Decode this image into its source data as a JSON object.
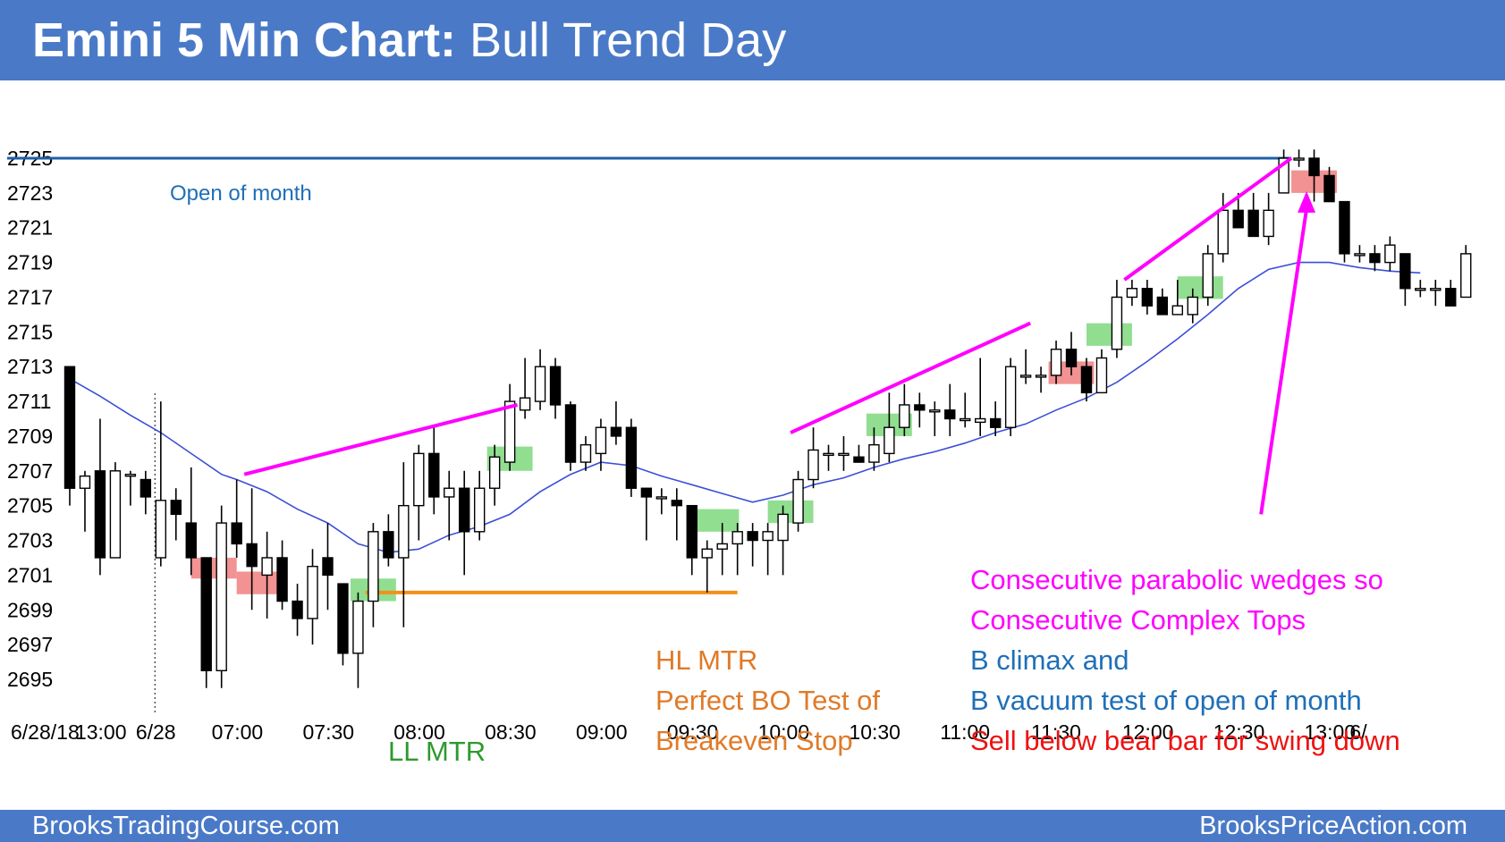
{
  "header": {
    "title_bold": "Emini 5 Min Chart:",
    "title_rest": "Bull Trend Day"
  },
  "footer": {
    "left": "BrooksTradingCourse.com",
    "right": "BrooksPriceAction.com"
  },
  "colors": {
    "header_bg": "#4a7ac7",
    "bull_body": "#ffffff",
    "bear_body": "#000000",
    "ema": "#3b4fd6",
    "wedge": "#ff00ff",
    "open_line": "#1f5fa8",
    "hl_line": "#f39019",
    "green_box": "#7ed87e",
    "red_box": "#f07f7f"
  },
  "chart_data": {
    "type": "candlestick",
    "title": "Emini 5 Min Chart: Bull Trend Day",
    "ylim": [
      2694,
      2728
    ],
    "yticks": [
      2695,
      2697,
      2699,
      2701,
      2703,
      2705,
      2707,
      2709,
      2711,
      2713,
      2715,
      2717,
      2719,
      2721,
      2723,
      2725
    ],
    "xticks": [
      {
        "label": "6/28/18",
        "bar": -0.3
      },
      {
        "label": "13:00",
        "bar": 2
      },
      {
        "label": "6/28",
        "bar": 6
      },
      {
        "label": "07:00",
        "bar": 11
      },
      {
        "label": "07:30",
        "bar": 17
      },
      {
        "label": "08:00",
        "bar": 23
      },
      {
        "label": "08:30",
        "bar": 29
      },
      {
        "label": "09:00",
        "bar": 35
      },
      {
        "label": "09:30",
        "bar": 41
      },
      {
        "label": "10:00",
        "bar": 47
      },
      {
        "label": "10:30",
        "bar": 53
      },
      {
        "label": "11:00",
        "bar": 59
      },
      {
        "label": "11:30",
        "bar": 65
      },
      {
        "label": "12:00",
        "bar": 71
      },
      {
        "label": "12:30",
        "bar": 77
      },
      {
        "label": "13:00",
        "bar": 83
      },
      {
        "label": "6/",
        "bar": 86
      }
    ],
    "session_break_bar": 5.5,
    "bars": [
      {
        "o": 2713.0,
        "h": 2713.0,
        "l": 2705.0,
        "c": 2706.0
      },
      {
        "o": 2706.0,
        "h": 2707.0,
        "l": 2703.5,
        "c": 2706.7
      },
      {
        "o": 2707.0,
        "h": 2710.0,
        "l": 2701.0,
        "c": 2702.0
      },
      {
        "o": 2702.0,
        "h": 2707.5,
        "l": 2702.0,
        "c": 2707.0
      },
      {
        "o": 2706.8,
        "h": 2707.0,
        "l": 2705.0,
        "c": 2706.8
      },
      {
        "o": 2706.5,
        "h": 2707.0,
        "l": 2704.5,
        "c": 2705.5
      },
      {
        "o": 2702.0,
        "h": 2711.0,
        "l": 2701.5,
        "c": 2705.3
      },
      {
        "o": 2705.3,
        "h": 2706.0,
        "l": 2703.0,
        "c": 2704.5
      },
      {
        "o": 2704.0,
        "h": 2707.2,
        "l": 2701.0,
        "c": 2702.0
      },
      {
        "o": 2702.0,
        "h": 2702.0,
        "l": 2694.5,
        "c": 2695.5
      },
      {
        "o": 2695.5,
        "h": 2705.0,
        "l": 2694.5,
        "c": 2704.0
      },
      {
        "o": 2704.0,
        "h": 2706.5,
        "l": 2702.0,
        "c": 2702.8
      },
      {
        "o": 2702.8,
        "h": 2706.0,
        "l": 2699.0,
        "c": 2701.5
      },
      {
        "o": 2701.0,
        "h": 2703.5,
        "l": 2698.5,
        "c": 2702.0
      },
      {
        "o": 2702.0,
        "h": 2703.0,
        "l": 2699.0,
        "c": 2699.5
      },
      {
        "o": 2699.5,
        "h": 2700.5,
        "l": 2697.5,
        "c": 2698.5
      },
      {
        "o": 2698.5,
        "h": 2702.5,
        "l": 2697.0,
        "c": 2701.5
      },
      {
        "o": 2702.0,
        "h": 2704.0,
        "l": 2699.0,
        "c": 2701.0
      },
      {
        "o": 2700.5,
        "h": 2700.5,
        "l": 2695.8,
        "c": 2696.5
      },
      {
        "o": 2696.5,
        "h": 2700.0,
        "l": 2694.5,
        "c": 2699.5
      },
      {
        "o": 2699.5,
        "h": 2704.0,
        "l": 2698.0,
        "c": 2703.5
      },
      {
        "o": 2703.5,
        "h": 2704.5,
        "l": 2701.5,
        "c": 2702.0
      },
      {
        "o": 2702.0,
        "h": 2707.5,
        "l": 2698.0,
        "c": 2705.0
      },
      {
        "o": 2705.0,
        "h": 2708.5,
        "l": 2703.0,
        "c": 2708.0
      },
      {
        "o": 2708.0,
        "h": 2709.5,
        "l": 2704.5,
        "c": 2705.5
      },
      {
        "o": 2705.5,
        "h": 2707.0,
        "l": 2703.0,
        "c": 2706.0
      },
      {
        "o": 2706.0,
        "h": 2707.0,
        "l": 2701.0,
        "c": 2703.5
      },
      {
        "o": 2703.5,
        "h": 2707.0,
        "l": 2703.0,
        "c": 2706.0
      },
      {
        "o": 2706.0,
        "h": 2708.5,
        "l": 2705.0,
        "c": 2707.8
      },
      {
        "o": 2707.5,
        "h": 2712.0,
        "l": 2707.0,
        "c": 2711.0
      },
      {
        "o": 2710.5,
        "h": 2713.5,
        "l": 2710.0,
        "c": 2711.2
      },
      {
        "o": 2711.0,
        "h": 2714.0,
        "l": 2710.5,
        "c": 2713.0
      },
      {
        "o": 2713.0,
        "h": 2713.5,
        "l": 2710.0,
        "c": 2710.8
      },
      {
        "o": 2710.8,
        "h": 2711.0,
        "l": 2707.0,
        "c": 2707.5
      },
      {
        "o": 2707.5,
        "h": 2709.0,
        "l": 2707.0,
        "c": 2708.5
      },
      {
        "o": 2708.0,
        "h": 2710.0,
        "l": 2707.0,
        "c": 2709.5
      },
      {
        "o": 2709.5,
        "h": 2711.0,
        "l": 2708.5,
        "c": 2709.0
      },
      {
        "o": 2709.5,
        "h": 2710.0,
        "l": 2705.5,
        "c": 2706.0
      },
      {
        "o": 2706.0,
        "h": 2706.0,
        "l": 2703.0,
        "c": 2705.5
      },
      {
        "o": 2705.5,
        "h": 2706.0,
        "l": 2704.5,
        "c": 2705.5
      },
      {
        "o": 2705.3,
        "h": 2706.0,
        "l": 2703.0,
        "c": 2705.0
      },
      {
        "o": 2705.0,
        "h": 2705.0,
        "l": 2701.0,
        "c": 2702.0
      },
      {
        "o": 2702.0,
        "h": 2703.0,
        "l": 2700.0,
        "c": 2702.5
      },
      {
        "o": 2702.5,
        "h": 2704.0,
        "l": 2701.0,
        "c": 2702.8
      },
      {
        "o": 2702.8,
        "h": 2704.0,
        "l": 2701.0,
        "c": 2703.5
      },
      {
        "o": 2703.5,
        "h": 2704.0,
        "l": 2701.5,
        "c": 2703.0
      },
      {
        "o": 2703.0,
        "h": 2704.0,
        "l": 2701.0,
        "c": 2703.5
      },
      {
        "o": 2703.0,
        "h": 2705.0,
        "l": 2701.0,
        "c": 2704.5
      },
      {
        "o": 2704.0,
        "h": 2707.0,
        "l": 2703.5,
        "c": 2706.5
      },
      {
        "o": 2706.5,
        "h": 2709.5,
        "l": 2706.0,
        "c": 2708.2
      },
      {
        "o": 2708.0,
        "h": 2708.5,
        "l": 2707.0,
        "c": 2708.0
      },
      {
        "o": 2708.0,
        "h": 2709.0,
        "l": 2707.0,
        "c": 2708.0
      },
      {
        "o": 2707.8,
        "h": 2708.5,
        "l": 2707.5,
        "c": 2707.5
      },
      {
        "o": 2707.5,
        "h": 2709.5,
        "l": 2707.0,
        "c": 2708.5
      },
      {
        "o": 2708.0,
        "h": 2711.5,
        "l": 2707.5,
        "c": 2709.5
      },
      {
        "o": 2709.5,
        "h": 2712.0,
        "l": 2709.0,
        "c": 2710.8
      },
      {
        "o": 2710.8,
        "h": 2711.5,
        "l": 2709.5,
        "c": 2710.5
      },
      {
        "o": 2710.5,
        "h": 2711.0,
        "l": 2709.0,
        "c": 2710.5
      },
      {
        "o": 2710.5,
        "h": 2712.0,
        "l": 2709.0,
        "c": 2710.0
      },
      {
        "o": 2710.0,
        "h": 2711.5,
        "l": 2709.5,
        "c": 2710.0
      },
      {
        "o": 2709.8,
        "h": 2713.5,
        "l": 2709.0,
        "c": 2710.0
      },
      {
        "o": 2710.0,
        "h": 2711.0,
        "l": 2709.0,
        "c": 2709.5
      },
      {
        "o": 2709.5,
        "h": 2713.5,
        "l": 2709.0,
        "c": 2713.0
      },
      {
        "o": 2712.5,
        "h": 2714.0,
        "l": 2712.0,
        "c": 2712.5
      },
      {
        "o": 2712.5,
        "h": 2713.0,
        "l": 2711.5,
        "c": 2712.5
      },
      {
        "o": 2712.5,
        "h": 2714.5,
        "l": 2712.0,
        "c": 2714.0
      },
      {
        "o": 2714.0,
        "h": 2715.0,
        "l": 2712.5,
        "c": 2713.0
      },
      {
        "o": 2713.0,
        "h": 2713.5,
        "l": 2711.0,
        "c": 2711.5
      },
      {
        "o": 2711.5,
        "h": 2714.0,
        "l": 2711.5,
        "c": 2713.5
      },
      {
        "o": 2714.0,
        "h": 2718.0,
        "l": 2713.5,
        "c": 2717.0
      },
      {
        "o": 2717.0,
        "h": 2718.0,
        "l": 2716.5,
        "c": 2717.5
      },
      {
        "o": 2717.5,
        "h": 2718.0,
        "l": 2716.0,
        "c": 2716.5
      },
      {
        "o": 2717.0,
        "h": 2717.5,
        "l": 2716.0,
        "c": 2716.0
      },
      {
        "o": 2716.0,
        "h": 2718.0,
        "l": 2716.0,
        "c": 2716.5
      },
      {
        "o": 2716.0,
        "h": 2717.5,
        "l": 2715.5,
        "c": 2717.0
      },
      {
        "o": 2717.0,
        "h": 2720.0,
        "l": 2716.5,
        "c": 2719.5
      },
      {
        "o": 2719.5,
        "h": 2723.0,
        "l": 2719.0,
        "c": 2722.0
      },
      {
        "o": 2722.0,
        "h": 2723.0,
        "l": 2721.0,
        "c": 2721.0
      },
      {
        "o": 2722.0,
        "h": 2723.0,
        "l": 2720.5,
        "c": 2720.5
      },
      {
        "o": 2720.5,
        "h": 2723.0,
        "l": 2720.0,
        "c": 2722.0
      },
      {
        "o": 2723.0,
        "h": 2725.5,
        "l": 2723.0,
        "c": 2725.0
      },
      {
        "o": 2725.0,
        "h": 2725.5,
        "l": 2724.5,
        "c": 2725.0
      },
      {
        "o": 2725.0,
        "h": 2725.5,
        "l": 2722.5,
        "c": 2724.0
      },
      {
        "o": 2724.0,
        "h": 2724.5,
        "l": 2722.5,
        "c": 2722.5
      },
      {
        "o": 2722.5,
        "h": 2722.5,
        "l": 2719.0,
        "c": 2719.5
      },
      {
        "o": 2719.5,
        "h": 2720.0,
        "l": 2719.0,
        "c": 2719.5
      },
      {
        "o": 2719.5,
        "h": 2720.0,
        "l": 2718.5,
        "c": 2719.0
      },
      {
        "o": 2719.0,
        "h": 2720.5,
        "l": 2718.5,
        "c": 2720.0
      },
      {
        "o": 2719.5,
        "h": 2719.5,
        "l": 2716.5,
        "c": 2717.5
      },
      {
        "o": 2717.5,
        "h": 2718.0,
        "l": 2717.0,
        "c": 2717.5
      },
      {
        "o": 2717.5,
        "h": 2718.0,
        "l": 2716.5,
        "c": 2717.5
      },
      {
        "o": 2717.5,
        "h": 2718.0,
        "l": 2716.5,
        "c": 2716.5
      },
      {
        "o": 2717.0,
        "h": 2720.0,
        "l": 2717.0,
        "c": 2719.5
      }
    ],
    "ema": [
      [
        0,
        2712.3
      ],
      [
        2,
        2711.3
      ],
      [
        4,
        2710.2
      ],
      [
        6,
        2709.2
      ],
      [
        8,
        2708.0
      ],
      [
        10,
        2706.8
      ],
      [
        11,
        2706.5
      ],
      [
        13,
        2705.8
      ],
      [
        15,
        2704.8
      ],
      [
        17,
        2704.0
      ],
      [
        19,
        2702.8
      ],
      [
        21,
        2702.3
      ],
      [
        23,
        2702.5
      ],
      [
        25,
        2703.3
      ],
      [
        27,
        2703.8
      ],
      [
        29,
        2704.5
      ],
      [
        31,
        2705.8
      ],
      [
        33,
        2706.8
      ],
      [
        35,
        2707.5
      ],
      [
        37,
        2707.3
      ],
      [
        39,
        2706.7
      ],
      [
        41,
        2706.2
      ],
      [
        43,
        2705.7
      ],
      [
        45,
        2705.2
      ],
      [
        47,
        2705.6
      ],
      [
        49,
        2706.2
      ],
      [
        51,
        2706.6
      ],
      [
        53,
        2707.2
      ],
      [
        55,
        2707.7
      ],
      [
        57,
        2708.1
      ],
      [
        59,
        2708.6
      ],
      [
        61,
        2709.2
      ],
      [
        63,
        2709.7
      ],
      [
        65,
        2710.5
      ],
      [
        67,
        2711.2
      ],
      [
        69,
        2712.1
      ],
      [
        71,
        2713.3
      ],
      [
        73,
        2714.6
      ],
      [
        75,
        2716.0
      ],
      [
        77,
        2717.5
      ],
      [
        79,
        2718.6
      ],
      [
        81,
        2719.0
      ],
      [
        83,
        2719.0
      ],
      [
        85,
        2718.7
      ],
      [
        87,
        2718.5
      ],
      [
        89,
        2718.4
      ]
    ],
    "annotations": {
      "open_of_month": {
        "label": "Open of month",
        "price": 2725
      },
      "hl_line": {
        "price": 2700,
        "from_bar": 19.5,
        "to_bar": 44
      },
      "wedges": [
        {
          "from": [
            11.5,
            2706.8
          ],
          "to": [
            29.5,
            2710.8
          ]
        },
        {
          "from": [
            47.5,
            2709.2
          ],
          "to": [
            63.3,
            2715.5
          ]
        },
        {
          "from": [
            69.5,
            2718.0
          ],
          "to": [
            80.5,
            2725.0
          ]
        }
      ],
      "green_boxes": [
        {
          "bar": 20,
          "low": 2699.5,
          "high": 2700.8
        },
        {
          "bar": 29,
          "low": 2707.0,
          "high": 2708.4
        },
        {
          "bar": 42.5,
          "low": 2703.5,
          "high": 2704.8,
          "width_bars": 3.2
        },
        {
          "bar": 47.5,
          "low": 2704.0,
          "high": 2705.3
        },
        {
          "bar": 54,
          "low": 2709.0,
          "high": 2710.3
        },
        {
          "bar": 68.5,
          "low": 2714.2,
          "high": 2715.5
        },
        {
          "bar": 74.5,
          "low": 2716.9,
          "high": 2718.2
        }
      ],
      "red_boxes": [
        {
          "bar": 9.5,
          "low": 2700.8,
          "high": 2702.0
        },
        {
          "bar": 12.5,
          "low": 2699.9,
          "high": 2701.2
        },
        {
          "bar": 66,
          "low": 2712.0,
          "high": 2713.3
        },
        {
          "bar": 82,
          "low": 2723.0,
          "high": 2724.3
        }
      ],
      "arrow": {
        "from": [
          78.5,
          2704.5
        ],
        "to": [
          81.5,
          2723.0
        ]
      },
      "labels": {
        "ll_mtr": "LL MTR",
        "hl_mtr": "HL MTR",
        "bo_test_1": "Perfect BO Test of",
        "bo_test_2": "Breakeven Stop",
        "note_1": "Consecutive parabolic wedges so",
        "note_2": "Consecutive Complex Tops",
        "note_3": "B climax and",
        "note_4": "B vacuum test of open of month",
        "note_5": "Sell below bear bar for swing down"
      }
    }
  }
}
